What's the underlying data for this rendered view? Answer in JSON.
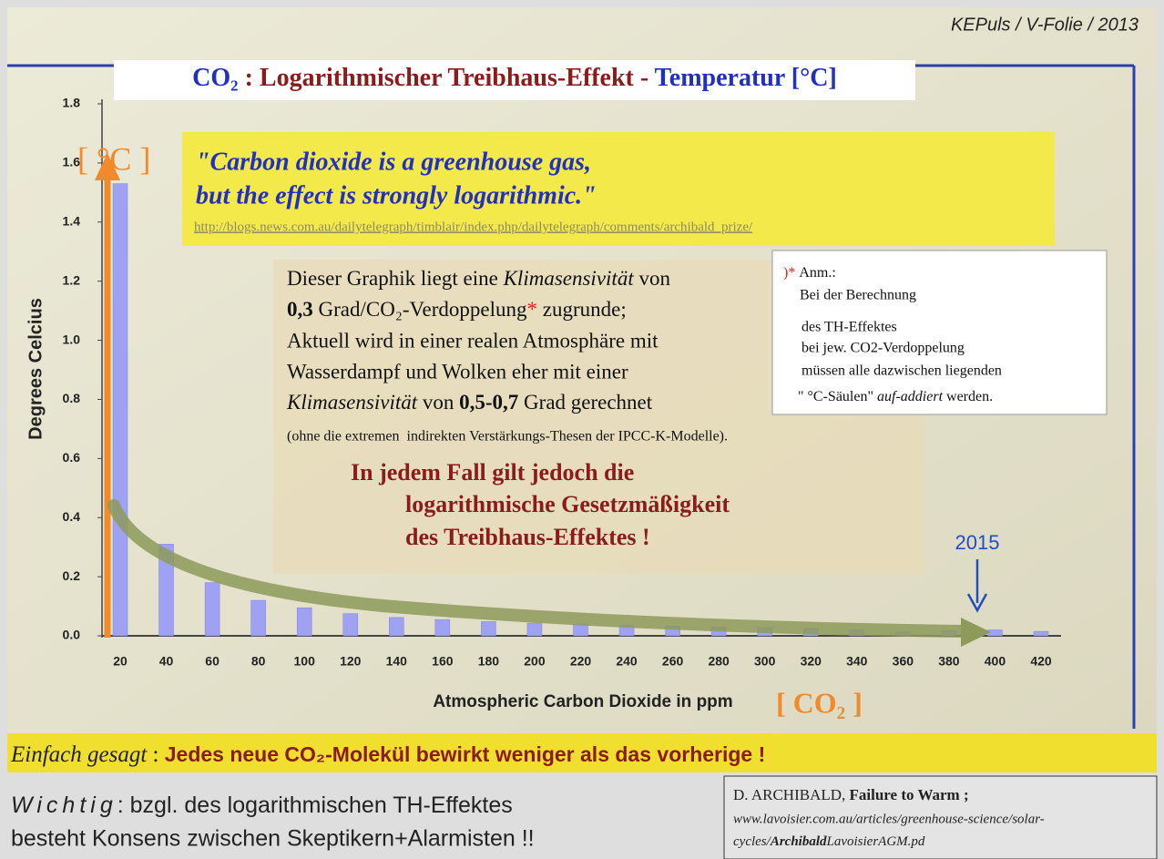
{
  "chart_data": {
    "type": "bar",
    "title": [
      "CO₂",
      " : Logarithmischer Treibhaus-Effekt - ",
      "Temperatur [°C]"
    ],
    "y_label": "Degrees Celcius",
    "y_unit": "[ °C ]",
    "x_label": "Atmospheric Carbon Dioxide in ppm",
    "x_unit": "[ CO₂ ]",
    "categories": [
      "20",
      "40",
      "60",
      "80",
      "100",
      "120",
      "140",
      "160",
      "180",
      "200",
      "220",
      "240",
      "260",
      "280",
      "300",
      "320",
      "340",
      "360",
      "380",
      "400",
      "420"
    ],
    "values": [
      1.53,
      0.31,
      0.18,
      0.12,
      0.095,
      0.075,
      0.062,
      0.055,
      0.048,
      0.043,
      0.04,
      0.036,
      0.033,
      0.03,
      0.028,
      0.025,
      0.02,
      0.015,
      0.018,
      0.02,
      0.015
    ],
    "color": "#9fa2f2",
    "ylim": [
      0,
      1.8
    ],
    "yticks": [
      {
        "value": 0,
        "label": "0.0"
      },
      0.2,
      0.4,
      0.6,
      0.8,
      {
        "value": 1,
        "label": "1.0"
      },
      1.2,
      1.4,
      1.6,
      1.8
    ],
    "grid": false,
    "annotation": "2015"
  },
  "header": {
    "source": "KEPuls / V-Folie / 2013"
  },
  "quote": {
    "lines": [
      "\"Carbon dioxide is a greenhouse gas,",
      "but the effect is strongly logarithmic.\""
    ],
    "url": "http://blogs.news.com.au/dailytelegraph/timblair/index.php/dailytelegraph/comments/archibald_prize/"
  },
  "text": {
    "lines": [
      [
        "Dieser Graphik liegt eine ",
        "Klimasensivität",
        " von"
      ],
      [
        "0,3",
        " Grad/CO₂-Verdoppelung",
        "*",
        " zugrunde;"
      ],
      [
        "Aktuell wird in einer realen Atmosphäre mit"
      ],
      [
        "Wasserdampf und Wolken eher mit einer"
      ],
      [
        "Klimasensivität",
        " von ",
        "0,5-0,7",
        " Grad gerechnet"
      ],
      [
        "(ohne die extremen  indirekten Verstärkungs-Thesen der IPCC-K-Modelle)."
      ]
    ],
    "emphasis": [
      "In jedem Fall gilt jedoch die",
      "logarithmische Gesetzmäßigkeit",
      "des Treibhaus-Effektes !"
    ]
  },
  "note": {
    "marker": ")*",
    "lines": [
      "Anm.:",
      "Bei der Berechnung",
      "des TH-Effektes",
      "bei jew. CO2-Verdoppelung",
      "müssen alle dazwischen liegenden"
    ],
    "last": [
      "\" °C-Säulen\" ",
      "auf-addiert",
      " werden."
    ]
  },
  "summary": [
    "Einfach gesagt",
    " : ",
    "Jedes neue CO₂-Molekül bewirkt weniger als das vorherige !"
  ],
  "footer": {
    "left": [
      "Wichtig",
      ": bzgl. des logarithmischen TH-Effektes",
      "besteht Konsens zwischen Skeptikern+Alarmisten !!"
    ],
    "right": [
      "D. ARCHIBALD, ",
      "Failure to Warm ;",
      "www.lavoisier.com.au/articles/greenhouse-science/solar-",
      "cycles/",
      "Archibald",
      "LavoisierAGM.pd"
    ]
  }
}
